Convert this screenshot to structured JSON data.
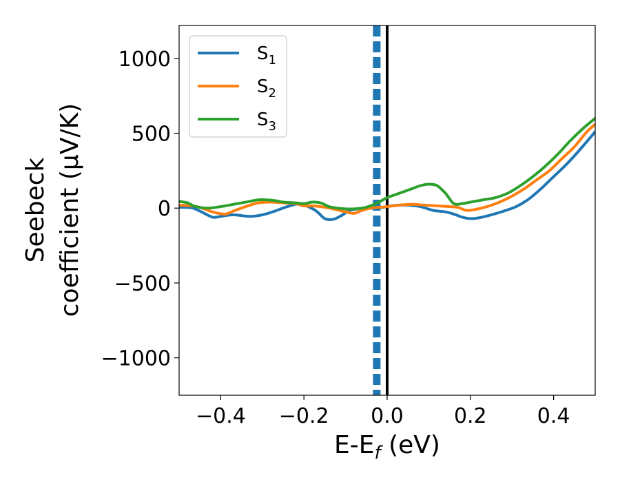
{
  "chart_data": {
    "type": "line",
    "xlabel": "E-E",
    "xlabel_sub": "f",
    "xlabel_unit": " (eV)",
    "ylabel_line1": "Seebeck",
    "ylabel_line2": "coefficient  (μV/K)",
    "xlim": [
      -0.5,
      0.5
    ],
    "ylim": [
      -1250,
      1220
    ],
    "xticks": [
      -0.4,
      -0.2,
      0.0,
      0.2,
      0.4
    ],
    "xtick_labels": [
      "−0.4",
      "−0.2",
      "0.0",
      "0.2",
      "0.4"
    ],
    "yticks": [
      -1000,
      -500,
      0,
      500,
      1000
    ],
    "ytick_labels": [
      "−1000",
      "−500",
      "0",
      "500",
      "1000"
    ],
    "legend_position": "top-left",
    "vlines": [
      {
        "x": -0.025,
        "style": "dashed",
        "color": "#1f77b4"
      },
      {
        "x": 0.0,
        "style": "solid",
        "color": "#000000"
      }
    ],
    "series": [
      {
        "name": "S",
        "sub": "1",
        "color": "#1f77b4",
        "x": [
          -0.5,
          -0.47,
          -0.45,
          -0.42,
          -0.4,
          -0.37,
          -0.33,
          -0.3,
          -0.27,
          -0.24,
          -0.21,
          -0.19,
          -0.17,
          -0.15,
          -0.13,
          -0.11,
          -0.09,
          -0.07,
          -0.05,
          -0.03,
          -0.01,
          0.01,
          0.03,
          0.05,
          0.08,
          0.11,
          0.14,
          0.16,
          0.18,
          0.2,
          0.22,
          0.25,
          0.28,
          0.31,
          0.34,
          0.37,
          0.4,
          0.43,
          0.46,
          0.5
        ],
        "y": [
          5,
          2,
          -20,
          -60,
          -55,
          -45,
          -55,
          -45,
          -20,
          10,
          30,
          10,
          -20,
          -70,
          -75,
          -50,
          -15,
          -5,
          -2,
          0,
          5,
          15,
          20,
          20,
          10,
          -15,
          -25,
          -40,
          -60,
          -70,
          -65,
          -45,
          -20,
          10,
          60,
          130,
          210,
          290,
          380,
          510
        ]
      },
      {
        "name": "S",
        "sub": "2",
        "color": "#ff7f0e",
        "x": [
          -0.5,
          -0.47,
          -0.45,
          -0.42,
          -0.39,
          -0.37,
          -0.34,
          -0.31,
          -0.28,
          -0.25,
          -0.22,
          -0.2,
          -0.18,
          -0.16,
          -0.13,
          -0.1,
          -0.08,
          -0.06,
          -0.04,
          -0.02,
          0.0,
          0.03,
          0.06,
          0.09,
          0.12,
          0.15,
          0.17,
          0.19,
          0.21,
          0.24,
          0.27,
          0.3,
          0.33,
          0.36,
          0.39,
          0.42,
          0.45,
          0.48,
          0.5
        ],
        "y": [
          20,
          15,
          5,
          -25,
          -40,
          -20,
          10,
          35,
          40,
          35,
          30,
          15,
          15,
          10,
          -5,
          -25,
          -35,
          -15,
          0,
          5,
          10,
          20,
          25,
          20,
          15,
          10,
          5,
          -15,
          -10,
          10,
          40,
          80,
          130,
          190,
          250,
          330,
          410,
          510,
          560
        ]
      },
      {
        "name": "S",
        "sub": "3",
        "color": "#2ca02c",
        "x": [
          -0.5,
          -0.48,
          -0.46,
          -0.43,
          -0.4,
          -0.37,
          -0.34,
          -0.31,
          -0.29,
          -0.27,
          -0.25,
          -0.22,
          -0.2,
          -0.18,
          -0.16,
          -0.14,
          -0.12,
          -0.1,
          -0.08,
          -0.06,
          -0.04,
          -0.02,
          0.0,
          0.02,
          0.04,
          0.06,
          0.08,
          0.1,
          0.12,
          0.14,
          0.16,
          0.18,
          0.2,
          0.23,
          0.26,
          0.29,
          0.32,
          0.35,
          0.38,
          0.41,
          0.44,
          0.47,
          0.5
        ],
        "y": [
          45,
          35,
          10,
          0,
          10,
          25,
          40,
          55,
          55,
          50,
          40,
          35,
          30,
          40,
          35,
          10,
          0,
          -5,
          -5,
          0,
          15,
          40,
          70,
          90,
          110,
          130,
          150,
          160,
          150,
          100,
          30,
          30,
          40,
          55,
          70,
          100,
          150,
          210,
          280,
          360,
          450,
          530,
          600
        ]
      }
    ]
  }
}
